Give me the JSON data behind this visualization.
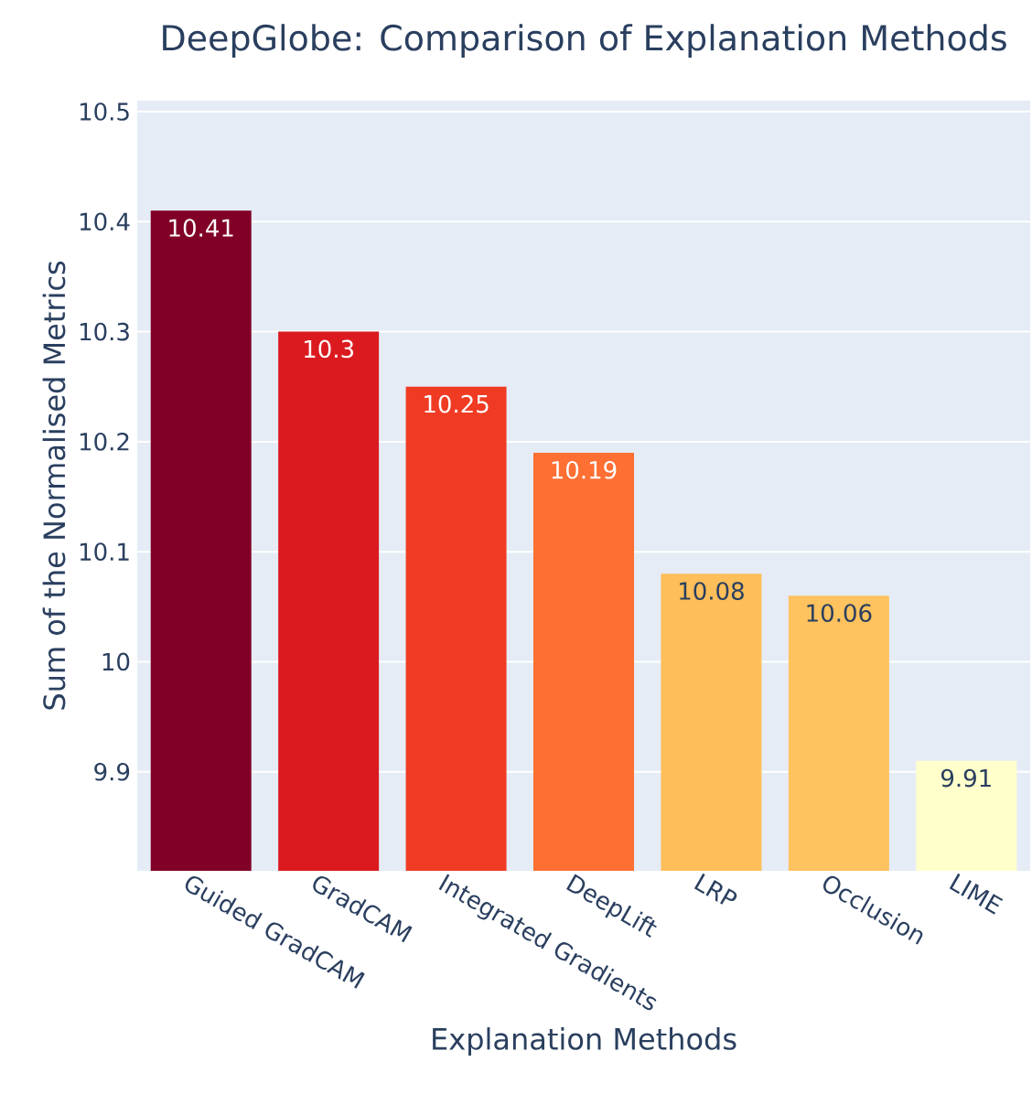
{
  "chart_data": {
    "type": "bar",
    "title": "DeepGlobe: Comparison of Explanation Methods",
    "xlabel": "Explanation Methods",
    "ylabel": "Sum of the Normalised Metrics",
    "categories": [
      "Guided GradCAM",
      "GradCAM",
      "Integrated Gradients",
      "DeepLift",
      "LRP",
      "Occlusion",
      "LIME"
    ],
    "values": [
      10.41,
      10.3,
      10.25,
      10.19,
      10.08,
      10.06,
      9.91
    ],
    "colors": [
      "#800026",
      "#db1a1f",
      "#f03b24",
      "#fd6f33",
      "#febe5a",
      "#fec25e",
      "#ffffcc"
    ],
    "ylim": [
      9.81,
      10.51
    ],
    "yticks": [
      9.9,
      10,
      10.1,
      10.2,
      10.3,
      10.4,
      10.5
    ],
    "grid": "y",
    "data_labels": true
  }
}
